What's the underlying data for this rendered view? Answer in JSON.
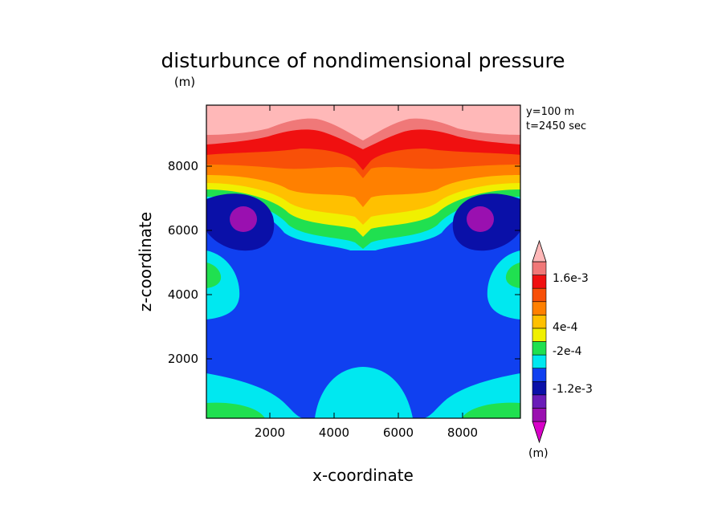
{
  "chart_data": {
    "type": "heatmap",
    "title": "disturbunce of nondimensional pressure",
    "title_unit": "(m)",
    "xlabel": "x-coordinate",
    "ylabel": "z-coordinate",
    "xlim": [
      0,
      10000
    ],
    "ylim": [
      0,
      9800
    ],
    "xticks": [
      "2000",
      "4000",
      "6000",
      "8000"
    ],
    "yticks": [
      "2000",
      "4000",
      "6000",
      "8000"
    ],
    "annotations": [
      "y=100 m",
      "t=2450 sec"
    ],
    "colorbar": {
      "unit": "(m)",
      "labels": [
        "1.6e-3",
        "4e-4",
        "-2e-4",
        "-1.2e-3"
      ],
      "levels": [
        {
          "color": "#d800c8",
          "range": "< -1.6e-3"
        },
        {
          "color": "#9a10b0"
        },
        {
          "color": "#6a1cb8"
        },
        {
          "color": "#0a10a8"
        },
        {
          "color": "#1040f0"
        },
        {
          "color": "#00e8f0"
        },
        {
          "color": "#20e050"
        },
        {
          "color": "#f0f000"
        },
        {
          "color": "#ffc000"
        },
        {
          "color": "#ff8000"
        },
        {
          "color": "#f85008"
        },
        {
          "color": "#f01010"
        },
        {
          "color": "#f07878"
        },
        {
          "color": "#ffb8b8",
          "range": "> 2.0e-3"
        }
      ]
    }
  }
}
